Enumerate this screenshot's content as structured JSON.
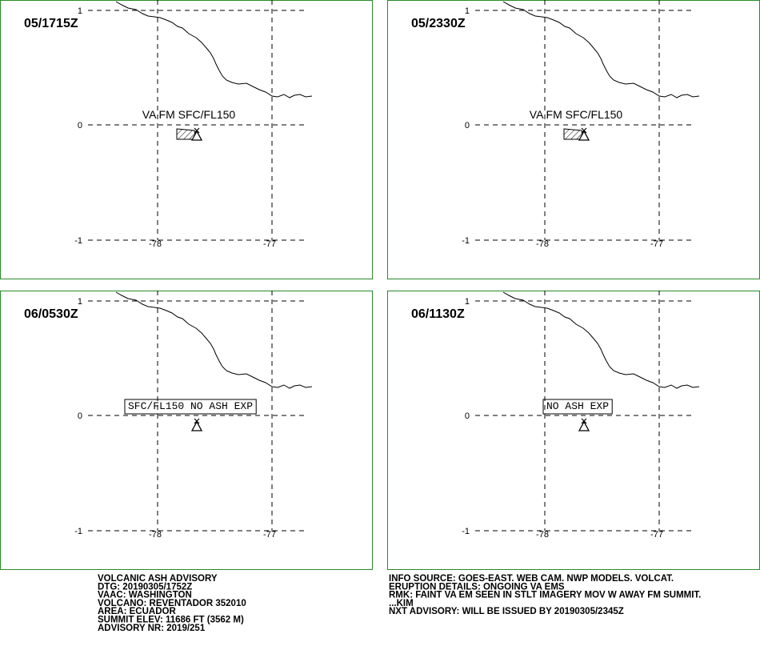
{
  "panels": [
    {
      "time": "05/1715Z",
      "annotation": "VA FM SFC/FL150"
    },
    {
      "time": "05/2330Z",
      "annotation": "VA FM SFC/FL150"
    },
    {
      "time": "06/0530Z",
      "box_annotation": "SFC/FL150 NO ASH EXP"
    },
    {
      "time": "06/1130Z",
      "box_annotation": "NO ASH EXP"
    }
  ],
  "axis": {
    "lat": [
      "1",
      "0",
      "-1"
    ],
    "lon": [
      "-78",
      "-77"
    ]
  },
  "footer": {
    "left": [
      "VOLCANIC ASH ADVISORY",
      "DTG: 20190305/1752Z",
      "VAAC: WASHINGTON",
      "VOLCANO: REVENTADOR 352010",
      "AREA: ECUADOR",
      "SUMMIT ELEV: 11686 FT (3562 M)",
      "ADVISORY NR: 2019/251"
    ],
    "right": [
      "INFO SOURCE: GOES-EAST. WEB CAM. NWP MODELS. VOLCAT.",
      "ERUPTION DETAILS: ONGOING VA EMS",
      "RMK: FAINT VA EM SEEN IN STLT IMAGERY MOV W AWAY FM SUMMIT.",
      "...KIM",
      "NXT ADVISORY: WILL BE ISSUED BY 20190305/2345Z"
    ]
  }
}
